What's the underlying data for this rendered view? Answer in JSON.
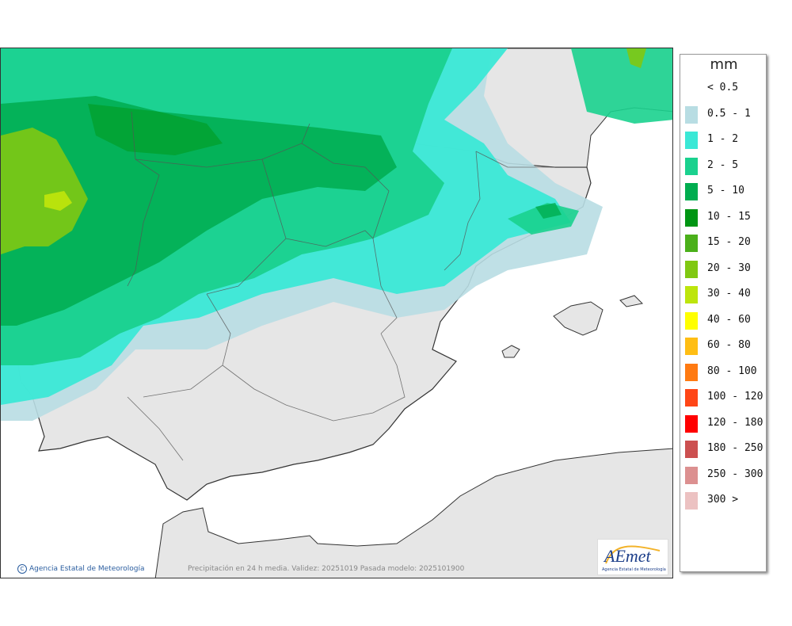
{
  "map": {
    "caption": "Precipitación en 24 h media. Validez: 20251019 Pasada modelo: 2025101900",
    "copyright": "Agencia Estatal de Meteorología",
    "logo": {
      "text": "AEmet",
      "subtitle": "Agencia Estatal de Meteorología"
    },
    "colors": {
      "sea": "#ffffff",
      "land": "#e6e6e6",
      "border": "#333333"
    }
  },
  "legend": {
    "unit": "mm",
    "items": [
      {
        "label": "< 0.5",
        "color": ""
      },
      {
        "label": "0.5 - 1",
        "color": "#b8dde3"
      },
      {
        "label": "1 - 2",
        "color": "#3be8d6"
      },
      {
        "label": "2 - 5",
        "color": "#1ad18e"
      },
      {
        "label": "5 - 10",
        "color": "#00ad4f"
      },
      {
        "label": "10 - 15",
        "color": "#009513"
      },
      {
        "label": "15 - 20",
        "color": "#4bb01a"
      },
      {
        "label": "20 - 30",
        "color": "#80c812"
      },
      {
        "label": "30 - 40",
        "color": "#bde50c"
      },
      {
        "label": "40 - 60",
        "color": "#ffff00"
      },
      {
        "label": "60 - 80",
        "color": "#ffbe14"
      },
      {
        "label": "80 - 100",
        "color": "#ff7a12"
      },
      {
        "label": "100 - 120",
        "color": "#ff4616"
      },
      {
        "label": "120 - 180",
        "color": "#ff0000"
      },
      {
        "label": "180 - 250",
        "color": "#cc5050"
      },
      {
        "label": "250 - 300",
        "color": "#dc9090"
      },
      {
        "label": "300 >",
        "color": "#ecc2c2"
      }
    ]
  }
}
